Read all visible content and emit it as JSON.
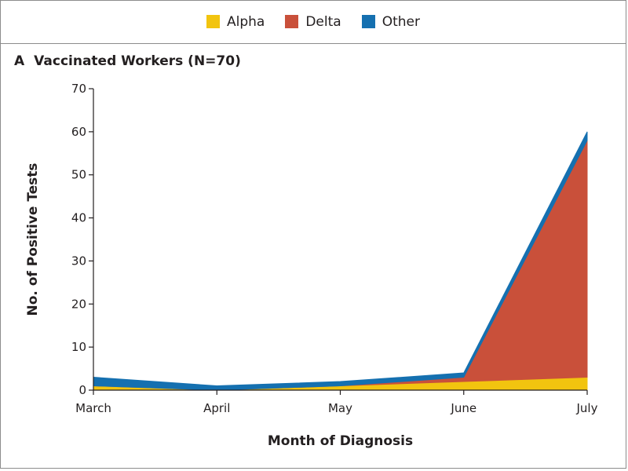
{
  "legend": [
    {
      "label": "Alpha",
      "color": "#f2c40f"
    },
    {
      "label": "Delta",
      "color": "#c9503a"
    },
    {
      "label": "Other",
      "color": "#1570b0"
    }
  ],
  "panel": {
    "letter": "A",
    "title": "Vaccinated Workers (N=70)"
  },
  "chart_data": {
    "type": "area",
    "stacked": true,
    "title": "Vaccinated Workers (N=70)",
    "xlabel": "Month of Diagnosis",
    "ylabel": "No. of Positive Tests",
    "categories": [
      "March",
      "April",
      "May",
      "June",
      "July"
    ],
    "ylim": [
      0,
      70
    ],
    "yticks": [
      0,
      10,
      20,
      30,
      40,
      50,
      60,
      70
    ],
    "grid": false,
    "legend_position": "top-center",
    "series": [
      {
        "name": "Alpha",
        "color": "#f2c40f",
        "values": [
          1,
          0,
          1,
          2,
          3
        ]
      },
      {
        "name": "Delta",
        "color": "#c9503a",
        "values": [
          0,
          0,
          0,
          1,
          55
        ]
      },
      {
        "name": "Other",
        "color": "#1570b0",
        "values": [
          2,
          1,
          1,
          1,
          2
        ]
      }
    ]
  }
}
